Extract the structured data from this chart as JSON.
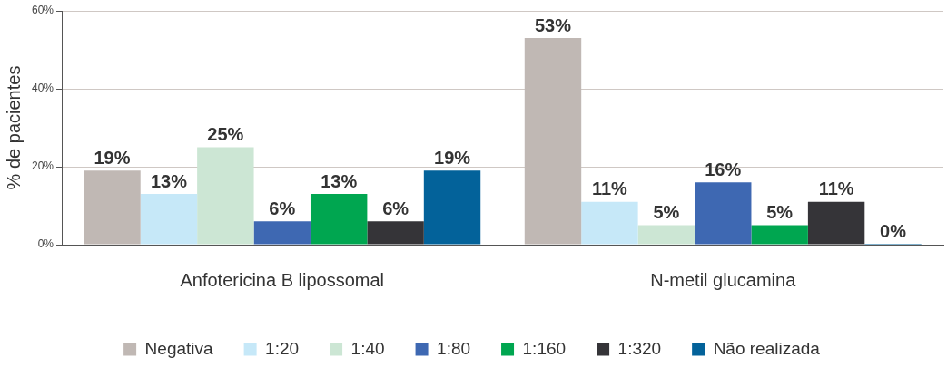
{
  "chart_data": {
    "type": "bar",
    "ylabel": "% de pacientes",
    "categories": [
      "Anfotericina B lipossomal",
      "N-metil glucamina"
    ],
    "series": [
      {
        "name": "Negativa",
        "color": "#c0b8b4",
        "values": [
          19,
          53
        ],
        "value_labels": [
          "19%",
          "53%"
        ]
      },
      {
        "name": "1:20",
        "color": "#c6e8f8",
        "values": [
          13,
          11
        ],
        "value_labels": [
          "13%",
          "11%"
        ]
      },
      {
        "name": "1:40",
        "color": "#cce6d4",
        "values": [
          25,
          5
        ],
        "value_labels": [
          "25%",
          "5%"
        ]
      },
      {
        "name": "1:80",
        "color": "#3e68b2",
        "values": [
          6,
          16
        ],
        "value_labels": [
          "6%",
          "16%"
        ]
      },
      {
        "name": "1:160",
        "color": "#00a650",
        "values": [
          13,
          5
        ],
        "value_labels": [
          "13%",
          "5%"
        ]
      },
      {
        "name": "1:320",
        "color": "#353438",
        "values": [
          6,
          11
        ],
        "value_labels": [
          "6%",
          "11%"
        ]
      },
      {
        "name": "Não realizada",
        "color": "#03629a",
        "values": [
          19,
          0
        ],
        "value_labels": [
          "19%",
          "0%"
        ]
      }
    ],
    "ylim": [
      0,
      60
    ],
    "yticks": [
      {
        "value": 0,
        "label": "0%"
      },
      {
        "value": 20,
        "label": "20%"
      },
      {
        "value": 40,
        "label": "40%"
      },
      {
        "value": 60,
        "label": "60%"
      }
    ],
    "grid": "y",
    "legend": "bottom"
  }
}
